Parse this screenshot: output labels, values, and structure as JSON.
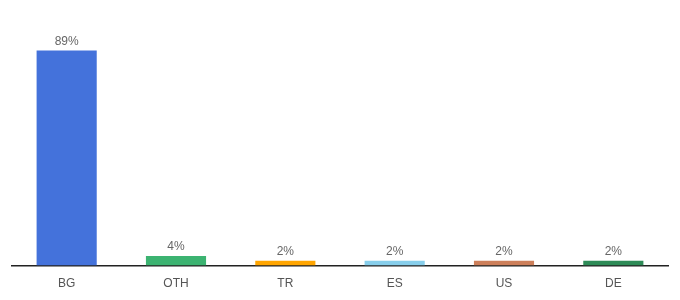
{
  "chart_data": {
    "type": "bar",
    "categories": [
      "BG",
      "OTH",
      "TR",
      "ES",
      "US",
      "DE"
    ],
    "values": [
      89,
      4,
      2,
      2,
      2,
      2
    ],
    "value_labels": [
      "89%",
      "4%",
      "2%",
      "2%",
      "2%",
      "2%"
    ],
    "colors": [
      "#4472db",
      "#3cb371",
      "#ffa500",
      "#87ceeb",
      "#cd7f5a",
      "#2e8b57"
    ],
    "ylim": [
      0,
      100
    ],
    "grid": false,
    "tick_labels": "x",
    "data_labels": true
  }
}
